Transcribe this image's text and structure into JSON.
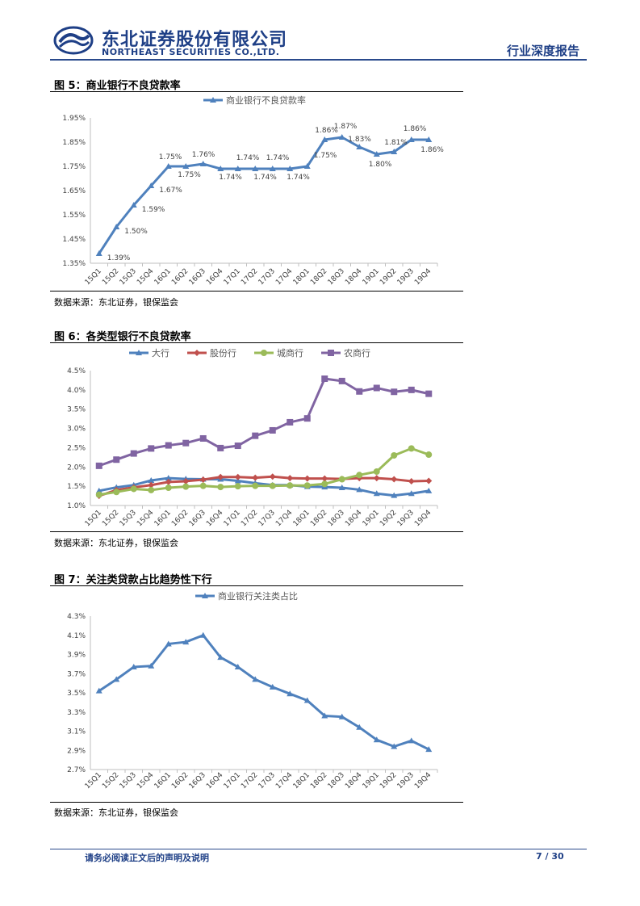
{
  "header": {
    "company_cn": "东北证券股份有限公司",
    "company_en": "NORTHEAST SECURITIES CO.,LTD.",
    "report_type": "行业深度报告"
  },
  "colors": {
    "brand": "#1e3f86",
    "series_blue": "#4f81bd",
    "series_red": "#c0504d",
    "series_green": "#9bbb59",
    "series_purple": "#8064a2"
  },
  "figures": [
    {
      "title": "图 5：商业银行不良贷款率",
      "source": "数据来源：东北证券，银保监会"
    },
    {
      "title": "图 6：各类型银行不良贷款率",
      "source": "数据来源：东北证券，银保监会"
    },
    {
      "title": "图 7：关注类贷款占比趋势性下行",
      "source": "数据来源：东北证券，银保监会"
    }
  ],
  "footer": {
    "disclaimer": "请务必阅读正文后的声明及说明",
    "page": "7 / 30"
  },
  "chart_data": [
    {
      "type": "line",
      "categories": [
        "15Q1",
        "15Q2",
        "15Q3",
        "15Q4",
        "16Q1",
        "16Q2",
        "16Q3",
        "16Q4",
        "17Q1",
        "17Q2",
        "17Q3",
        "17Q4",
        "18Q1",
        "18Q2",
        "18Q3",
        "18Q4",
        "19Q1",
        "19Q2",
        "19Q3",
        "19Q4"
      ],
      "series": [
        {
          "name": "商业银行不良贷款率",
          "values": [
            1.39,
            1.5,
            1.59,
            1.67,
            1.75,
            1.75,
            1.76,
            1.74,
            1.74,
            1.74,
            1.74,
            1.74,
            1.75,
            1.86,
            1.87,
            1.83,
            1.8,
            1.81,
            1.86,
            1.86
          ]
        }
      ],
      "data_labels": [
        "1.39%",
        "1.50%",
        "1.59%",
        "1.67%",
        "1.75%",
        "1.75%",
        "1.76%",
        "1.74%",
        "1.74%",
        "1.74%",
        "1.74%",
        "1.74%",
        "1.75%",
        "1.86%",
        "1.87%",
        "1.83%",
        "1.80%",
        "1.81%",
        "1.86%",
        "1.86%"
      ],
      "yticks": [
        "1.35%",
        "1.45%",
        "1.55%",
        "1.65%",
        "1.75%",
        "1.85%",
        "1.95%"
      ],
      "ylim": [
        1.35,
        1.95
      ],
      "legend": "top-center",
      "grid": false
    },
    {
      "type": "line",
      "categories": [
        "15Q1",
        "15Q2",
        "15Q3",
        "15Q4",
        "16Q1",
        "16Q2",
        "16Q3",
        "16Q4",
        "17Q1",
        "17Q2",
        "17Q3",
        "17Q4",
        "18Q1",
        "18Q2",
        "18Q3",
        "18Q4",
        "19Q1",
        "19Q2",
        "19Q3",
        "19Q4"
      ],
      "series": [
        {
          "name": "大行",
          "values": [
            1.38,
            1.47,
            1.53,
            1.65,
            1.71,
            1.69,
            1.68,
            1.68,
            1.64,
            1.58,
            1.53,
            1.53,
            1.49,
            1.48,
            1.46,
            1.41,
            1.31,
            1.26,
            1.31,
            1.38
          ]
        },
        {
          "name": "股份行",
          "values": [
            1.25,
            1.4,
            1.47,
            1.53,
            1.61,
            1.63,
            1.67,
            1.74,
            1.74,
            1.72,
            1.75,
            1.71,
            1.7,
            1.7,
            1.69,
            1.71,
            1.71,
            1.68,
            1.63,
            1.64
          ]
        },
        {
          "name": "城商行",
          "values": [
            1.28,
            1.35,
            1.43,
            1.4,
            1.46,
            1.49,
            1.51,
            1.48,
            1.5,
            1.51,
            1.51,
            1.52,
            1.52,
            1.56,
            1.68,
            1.79,
            1.88,
            2.3,
            2.48,
            2.32
          ]
        },
        {
          "name": "农商行",
          "values": [
            2.03,
            2.19,
            2.35,
            2.48,
            2.56,
            2.62,
            2.74,
            2.49,
            2.55,
            2.81,
            2.95,
            3.16,
            3.26,
            4.29,
            4.23,
            3.96,
            4.05,
            3.95,
            4.0,
            3.9
          ]
        }
      ],
      "yticks": [
        "1.0%",
        "1.5%",
        "2.0%",
        "2.5%",
        "3.0%",
        "3.5%",
        "4.0%",
        "4.5%"
      ],
      "ylim": [
        1.0,
        4.5
      ],
      "legend": "top-center",
      "grid": false
    },
    {
      "type": "line",
      "categories": [
        "15Q1",
        "15Q2",
        "15Q3",
        "15Q4",
        "16Q1",
        "16Q2",
        "16Q3",
        "16Q4",
        "17Q1",
        "17Q2",
        "17Q3",
        "17Q4",
        "18Q1",
        "18Q2",
        "18Q3",
        "18Q4",
        "19Q1",
        "19Q2",
        "19Q3",
        "19Q4"
      ],
      "series": [
        {
          "name": "商业银行关注类占比",
          "values": [
            3.52,
            3.64,
            3.77,
            3.78,
            4.01,
            4.03,
            4.1,
            3.87,
            3.77,
            3.64,
            3.56,
            3.49,
            3.42,
            3.26,
            3.25,
            3.14,
            3.01,
            2.94,
            3.0,
            2.91
          ]
        }
      ],
      "yticks": [
        "2.7%",
        "2.9%",
        "3.1%",
        "3.3%",
        "3.5%",
        "3.7%",
        "3.9%",
        "4.1%",
        "4.3%"
      ],
      "ylim": [
        2.7,
        4.3
      ],
      "legend": "top-center",
      "grid": false
    }
  ]
}
